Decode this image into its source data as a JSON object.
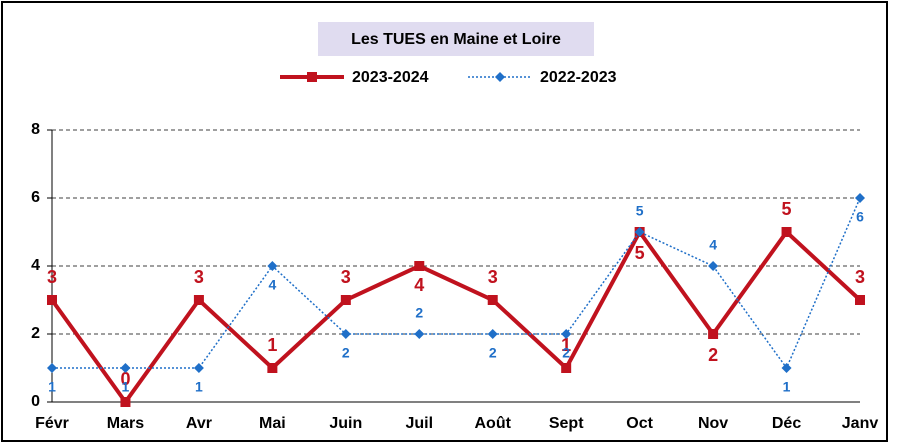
{
  "chart_data": {
    "type": "line",
    "title": "Les TUES en Maine et Loire",
    "categories": [
      "Févr",
      "Mars",
      "Avr",
      "Mai",
      "Juin",
      "Juil",
      "Août",
      "Sept",
      "Oct",
      "Nov",
      "Déc",
      "Janv"
    ],
    "series": [
      {
        "name": "2023-2024",
        "color": "#c0121e",
        "values": [
          3,
          0,
          3,
          1,
          3,
          4,
          3,
          1,
          5,
          2,
          5,
          3
        ]
      },
      {
        "name": "2022-2023",
        "color": "#1f6fc8",
        "values": [
          1,
          1,
          1,
          4,
          2,
          2,
          2,
          2,
          5,
          4,
          1,
          6
        ]
      }
    ],
    "ylim": [
      0,
      8
    ],
    "yticks": [
      0,
      2,
      4,
      6,
      8
    ],
    "grid": true
  }
}
